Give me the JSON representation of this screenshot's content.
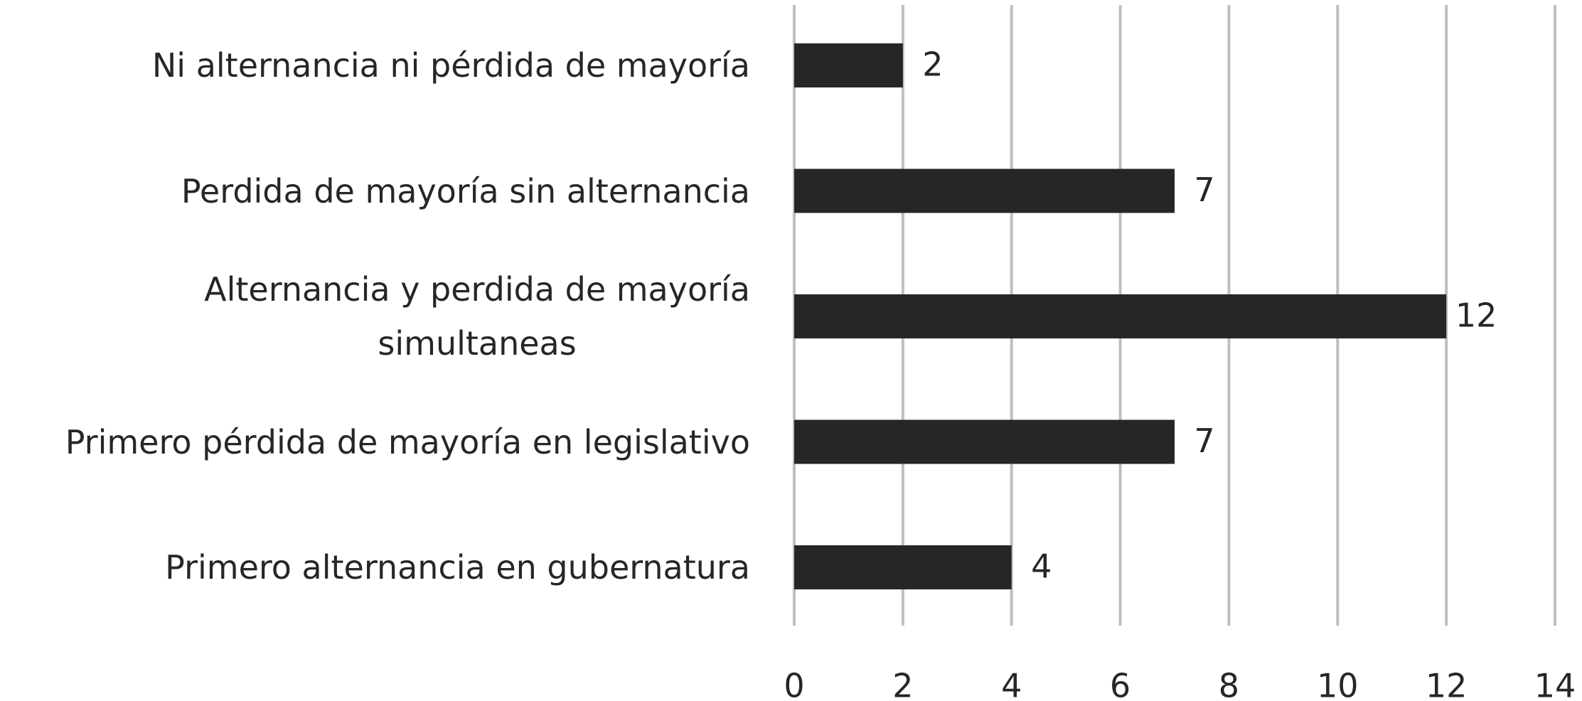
{
  "chart_data": {
    "type": "bar",
    "orientation": "horizontal",
    "categories": [
      "Ni alternancia ni pérdida de mayoría",
      "Perdida de mayoría sin alternancia",
      "Alternancia y perdida de mayoría\nsimultaneas",
      "Primero pérdida de mayoría en legislativo",
      "Primero alternancia en gubernatura"
    ],
    "values": [
      2,
      7,
      12,
      7,
      4
    ],
    "color": "#262626",
    "xlim": [
      0,
      14
    ],
    "xticks": [
      0,
      2,
      4,
      6,
      8,
      10,
      12,
      14
    ],
    "grid": true,
    "grid_color": "#bfbfbf"
  }
}
